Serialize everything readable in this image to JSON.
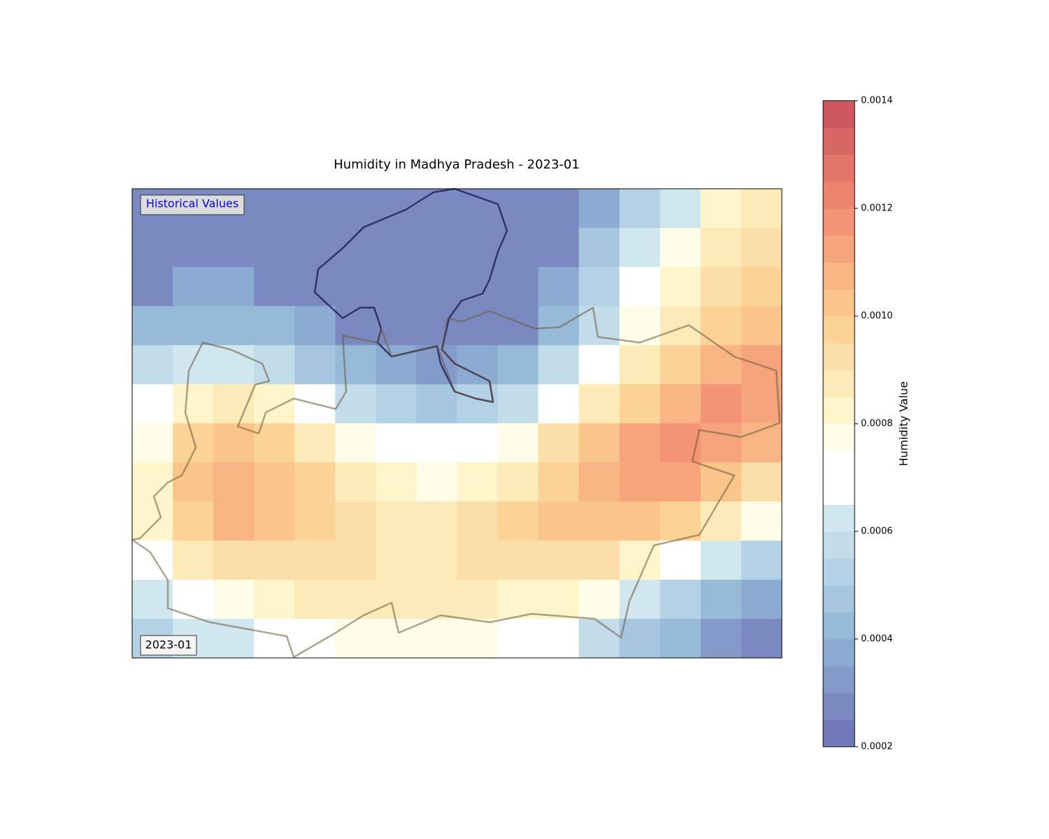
{
  "chart_data": {
    "type": "heatmap",
    "title": "Humidity in Madhya Pradesh - 2023-01",
    "badge": "Historical Values",
    "date_label": "2023-01",
    "colorbar_label": "Humidity Value",
    "colormap": "RdYlBu_r",
    "zlim": [
      0.0002,
      0.0014
    ],
    "zticks": [
      0.0002,
      0.0004,
      0.0006,
      0.0008,
      {
        "value": 0.001,
        "label": "0.0010"
      },
      0.0012,
      0.0014
    ],
    "z": [
      [
        0.00025,
        0.00025,
        0.00025,
        0.00025,
        0.00025,
        0.00025,
        0.00025,
        0.00025,
        0.00025,
        0.00025,
        0.00025,
        0.00035,
        0.0005,
        0.0006,
        0.0008,
        0.00085
      ],
      [
        0.00025,
        0.00025,
        0.00025,
        0.00025,
        0.00025,
        0.00025,
        0.00025,
        0.00025,
        0.00025,
        0.00025,
        0.0003,
        0.00045,
        0.0006,
        0.00075,
        0.00085,
        0.0009
      ],
      [
        0.0003,
        0.00035,
        0.00035,
        0.0003,
        0.00028,
        0.00025,
        0.00025,
        0.00025,
        0.00025,
        0.00025,
        0.00038,
        0.0005,
        0.00068,
        0.0008,
        0.0009,
        0.00098
      ],
      [
        0.0004,
        0.00042,
        0.00042,
        0.0004,
        0.00035,
        0.0003,
        0.00027,
        0.00025,
        0.00027,
        0.0003,
        0.0004,
        0.00058,
        0.00075,
        0.00088,
        0.00098,
        0.00103
      ],
      [
        0.00055,
        0.0006,
        0.0006,
        0.00055,
        0.00048,
        0.0004,
        0.00035,
        0.00033,
        0.00035,
        0.0004,
        0.00055,
        0.0007,
        0.00085,
        0.00098,
        0.00108,
        0.0011
      ],
      [
        0.0007,
        0.00082,
        0.00085,
        0.0008,
        0.0007,
        0.00058,
        0.0005,
        0.00048,
        0.0005,
        0.00058,
        0.0007,
        0.00085,
        0.00098,
        0.00108,
        0.00115,
        0.00112
      ],
      [
        0.00078,
        0.00095,
        0.001,
        0.00097,
        0.00088,
        0.00078,
        0.00068,
        0.00065,
        0.00068,
        0.00078,
        0.0009,
        0.001,
        0.0011,
        0.00115,
        0.00113,
        0.00105
      ],
      [
        0.0008,
        0.001,
        0.00107,
        0.00103,
        0.00095,
        0.00088,
        0.0008,
        0.00078,
        0.0008,
        0.00088,
        0.00098,
        0.00105,
        0.0011,
        0.0011,
        0.00102,
        0.0009
      ],
      [
        0.0008,
        0.00098,
        0.00105,
        0.00102,
        0.00095,
        0.0009,
        0.00088,
        0.00088,
        0.0009,
        0.00095,
        0.001,
        0.00103,
        0.00102,
        0.00095,
        0.00085,
        0.00075
      ],
      [
        0.0007,
        0.00085,
        0.00092,
        0.00093,
        0.0009,
        0.0009,
        0.00088,
        0.00088,
        0.0009,
        0.00092,
        0.00092,
        0.0009,
        0.00082,
        0.0007,
        0.0006,
        0.0005
      ],
      [
        0.0006,
        0.0007,
        0.00078,
        0.00082,
        0.00085,
        0.00085,
        0.00085,
        0.00085,
        0.00085,
        0.00082,
        0.0008,
        0.00075,
        0.00062,
        0.0005,
        0.00042,
        0.00035
      ],
      [
        0.00052,
        0.0006,
        0.00062,
        0.00068,
        0.0007,
        0.00075,
        0.00078,
        0.00078,
        0.00075,
        0.0007,
        0.00065,
        0.00058,
        0.00048,
        0.0004,
        0.00033,
        0.00027
      ]
    ]
  }
}
